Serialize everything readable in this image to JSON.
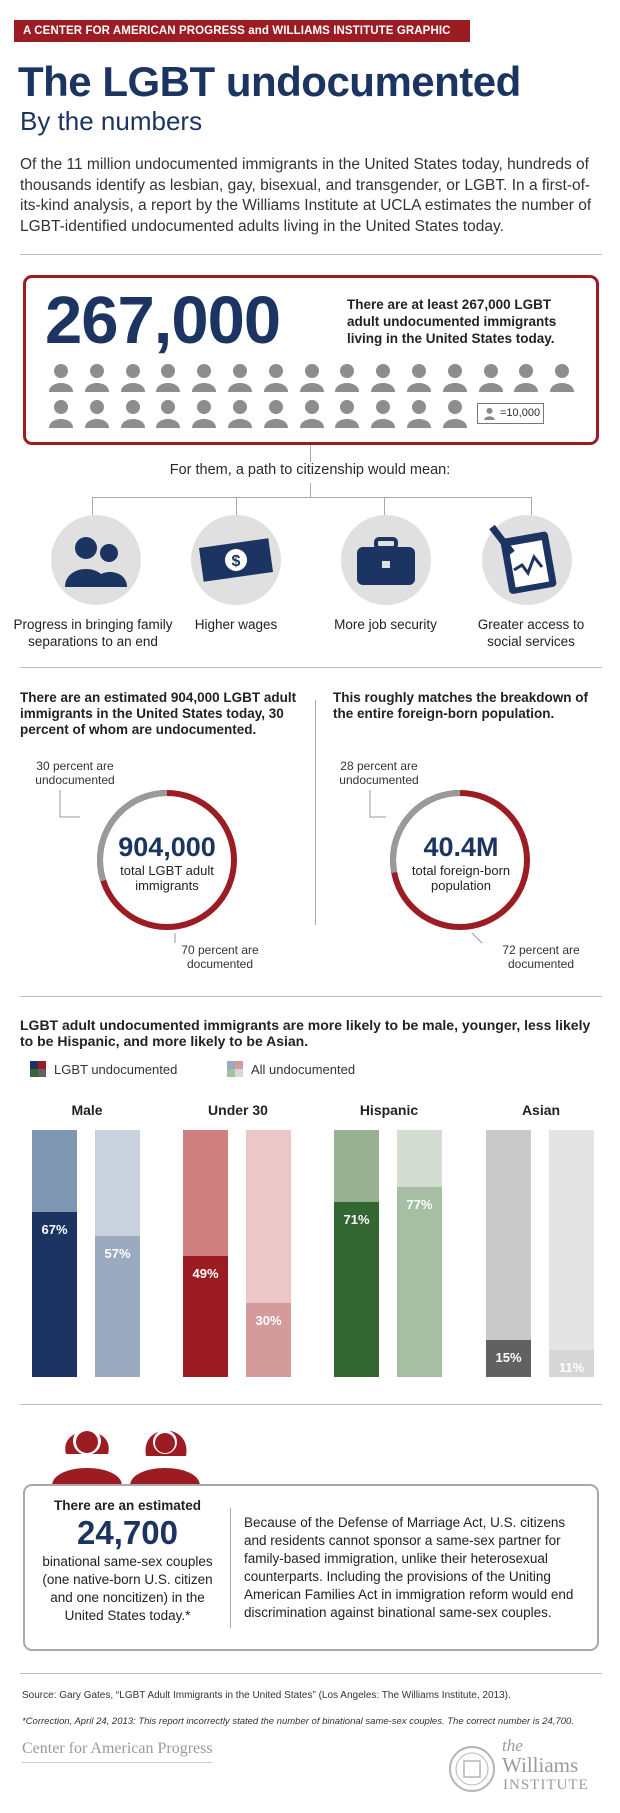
{
  "header": {
    "tag": "A CENTER FOR AMERICAN PROGRESS and WILLIAMS INSTITUTE GRAPHIC",
    "title": "The LGBT undocumented",
    "subtitle": "By the numbers",
    "intro": "Of the 11 million undocumented immigrants in the United States today, hundreds of thousands identify as lesbian, gay, bisexual, and transgender, or LGBT. In a first-of-its-kind analysis, a report by the Williams Institute at UCLA estimates the number of LGBT-identified undocumented adults living in the United States today."
  },
  "headline_stat": {
    "number": "267,000",
    "text": "There are at least 267,000 LGBT adult undocumented immigrants living in the United States today.",
    "legend": "=10,000",
    "icon_count": 27
  },
  "path": {
    "title": "For them, a path to citizenship would mean:",
    "benefits": [
      {
        "label": "Progress in bringing family separations to an end",
        "icon": "family-icon"
      },
      {
        "label": "Higher wages",
        "icon": "dollar-bill-icon"
      },
      {
        "label": "More job security",
        "icon": "briefcase-icon"
      },
      {
        "label": "Greater access to social services",
        "icon": "clipboard-icon"
      }
    ]
  },
  "rings": [
    {
      "heading": "There are an estimated 904,000 LGBT adult immigrants in the United States today, 30 percent of whom are undocumented.",
      "top_label": "30 percent are undocumented",
      "number": "904,000",
      "sub": "total LGBT adult immigrants",
      "bottom_label": "70 percent are documented",
      "undocumented_pct": 30
    },
    {
      "heading": "This roughly matches the breakdown of the entire foreign-born population.",
      "top_label": "28 percent are undocumented",
      "number": "40.4M",
      "sub": "total foreign-born population",
      "bottom_label": "72 percent are documented",
      "undocumented_pct": 28
    }
  ],
  "comparison": {
    "heading": "LGBT adult undocumented immigrants are more likely to be male, younger, less likely to be Hispanic, and more likely to be Asian.",
    "legend": [
      "LGBT undocumented",
      "All undocumented"
    ]
  },
  "chart_data": {
    "type": "bar",
    "categories": [
      "Male",
      "Under 30",
      "Hispanic",
      "Asian"
    ],
    "series": [
      {
        "name": "LGBT undocumented",
        "values": [
          67,
          49,
          71,
          15
        ]
      },
      {
        "name": "All undocumented",
        "values": [
          57,
          30,
          77,
          11
        ]
      }
    ],
    "labels": [
      [
        "67%",
        "57%"
      ],
      [
        "49%",
        "30%"
      ],
      [
        "71%",
        "77%"
      ],
      [
        "15%",
        "11%"
      ]
    ],
    "ylim": [
      0,
      100
    ],
    "colors": {
      "Male": [
        "#1b3461",
        "#9aaabf",
        "#7f97b3",
        "#c8d2de"
      ],
      "Under 30": [
        "#9b1c22",
        "#d49b9c",
        "#cf7f7f",
        "#ebc7c7"
      ],
      "Hispanic": [
        "#336631",
        "#a6bfa3",
        "#98b193",
        "#d3ddd1"
      ],
      "Asian": [
        "#616161",
        "#d6d6d6",
        "#c9c9c9",
        "#e4e4e4"
      ]
    }
  },
  "binational": {
    "pre": "There are an estimated",
    "number": "24,700",
    "post": "binational same-sex couples (one native-born U.S. citizen and one noncitizen) in the United States today.*",
    "body": "Because of the Defense of Marriage Act, U.S. citizens and residents cannot sponsor a same-sex partner for family-based immigration, unlike their heterosexual counterparts. Including the provisions of the Uniting American Families Act in immigration reform would end discrimination against binational same-sex couples."
  },
  "footer": {
    "source": "Source: Gary Gates, “LGBT Adult Immigrants in the United States” (Los Angeles: The Williams Institute, 2013).",
    "correction": "*Correction, April 24, 2013: This report incorrectly stated the number of binational same-sex couples. The correct number is 24,700.",
    "logo_left": "Center for American Progress",
    "logo_right_1": "the",
    "logo_right_2": "Williams",
    "logo_right_3": "INSTITUTE"
  }
}
